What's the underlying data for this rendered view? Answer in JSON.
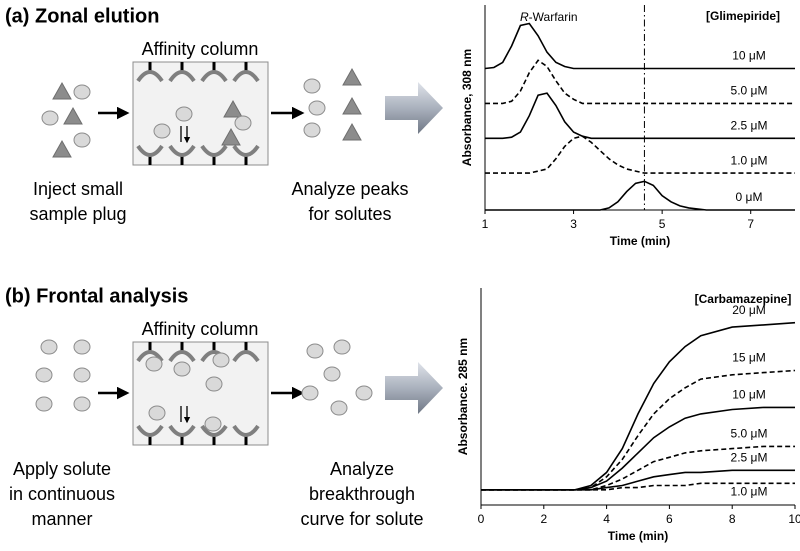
{
  "diagrams": [
    {
      "title": "(a) Zonal elution",
      "column_label": "Affinity column",
      "input_caption": [
        "Inject small",
        "sample plug"
      ],
      "output_caption": [
        "Analyze peaks",
        "for solutes"
      ]
    },
    {
      "title": "(b) Frontal analysis",
      "column_label": "Affinity column",
      "input_caption": [
        "Apply solute",
        "in continuous",
        "manner"
      ],
      "output_caption": [
        "Analyze",
        "breakthrough",
        "curve for solute"
      ]
    }
  ],
  "chart_data": [
    {
      "type": "line",
      "x_label": "Time (min)",
      "y_label": "Absorbance, 308 nm",
      "legend_title": "[Glimepiride]",
      "annotation": "R-Warfarin",
      "xlim": [
        1,
        8
      ],
      "xticks": [
        1,
        3,
        5,
        7
      ],
      "ylim": [
        0,
        10
      ],
      "vline": 4.6,
      "x": [
        1,
        1.2,
        1.4,
        1.6,
        1.8,
        2,
        2.2,
        2.4,
        2.6,
        2.8,
        3,
        3.2,
        3.4,
        3.6,
        3.8,
        4,
        4.2,
        4.4,
        4.6,
        4.8,
        5,
        5.2,
        5.4,
        5.6,
        6,
        7,
        8
      ],
      "series": [
        {
          "name": "10 μM",
          "color": "#000000",
          "style": "solid",
          "values": [
            6.9,
            6.95,
            7.2,
            8,
            9,
            9.1,
            8.5,
            7.7,
            7.2,
            7,
            6.9,
            6.9,
            6.9,
            6.9,
            6.9,
            6.9,
            6.9,
            6.9,
            6.9,
            6.9,
            6.9,
            6.9,
            6.9,
            6.9,
            6.9,
            6.9,
            6.9
          ]
        },
        {
          "name": "5.0 μM",
          "color": "#000000",
          "style": "dashed",
          "values": [
            5.2,
            5.2,
            5.2,
            5.3,
            5.8,
            6.7,
            7.3,
            7,
            6.3,
            5.7,
            5.4,
            5.2,
            5.2,
            5.2,
            5.2,
            5.2,
            5.2,
            5.2,
            5.2,
            5.2,
            5.2,
            5.2,
            5.2,
            5.2,
            5.2,
            5.2,
            5.2
          ]
        },
        {
          "name": "2.5 μM",
          "color": "#000000",
          "style": "solid",
          "values": [
            3.5,
            3.5,
            3.5,
            3.55,
            3.8,
            4.6,
            5.6,
            5.7,
            5.1,
            4.3,
            3.8,
            3.6,
            3.5,
            3.5,
            3.5,
            3.5,
            3.5,
            3.5,
            3.5,
            3.5,
            3.5,
            3.5,
            3.5,
            3.5,
            3.5,
            3.5,
            3.5
          ]
        },
        {
          "name": "1.0 μM",
          "color": "#000000",
          "style": "dashed",
          "values": [
            1.8,
            1.8,
            1.8,
            1.8,
            1.8,
            1.8,
            1.9,
            2,
            2.5,
            3.1,
            3.5,
            3.6,
            3.3,
            2.9,
            2.5,
            2.2,
            2,
            1.9,
            1.8,
            1.8,
            1.8,
            1.8,
            1.8,
            1.8,
            1.8,
            1.8,
            1.8
          ]
        },
        {
          "name": "0 μM",
          "color": "#000000",
          "style": "solid",
          "values": [
            0,
            0,
            0,
            0,
            0,
            0,
            0,
            0,
            0,
            0,
            0,
            0,
            0,
            0,
            0.1,
            0.4,
            0.9,
            1.3,
            1.4,
            1.2,
            0.7,
            0.4,
            0.2,
            0.1,
            0,
            0,
            0
          ]
        }
      ]
    },
    {
      "type": "line",
      "x_label": "Time (min)",
      "y_label": "Absorbance. 285 nm",
      "legend_title": "[Carbamazepine]",
      "xlim": [
        0,
        10
      ],
      "xticks": [
        0,
        2,
        4,
        6,
        8,
        10
      ],
      "ylim": [
        0,
        10
      ],
      "x": [
        0,
        1,
        2,
        3,
        3.5,
        4,
        4.5,
        5,
        5.5,
        6,
        6.5,
        7,
        8,
        9,
        10
      ],
      "series": [
        {
          "name": "20 μM",
          "color": "#000000",
          "style": "solid",
          "values": [
            0.7,
            0.7,
            0.7,
            0.7,
            0.9,
            1.5,
            2.6,
            4.2,
            5.6,
            6.6,
            7.3,
            7.8,
            8.2,
            8.3,
            8.4
          ]
        },
        {
          "name": "15 μM",
          "color": "#000000",
          "style": "dashed",
          "values": [
            0.7,
            0.7,
            0.7,
            0.7,
            0.8,
            1.3,
            2.1,
            3.2,
            4.2,
            4.9,
            5.4,
            5.8,
            6,
            6.1,
            6.2
          ]
        },
        {
          "name": "10 μM",
          "color": "#000000",
          "style": "solid",
          "values": [
            0.7,
            0.7,
            0.7,
            0.7,
            0.8,
            1.1,
            1.7,
            2.4,
            3.1,
            3.6,
            4,
            4.2,
            4.4,
            4.5,
            4.5
          ]
        },
        {
          "name": "5.0 μM",
          "color": "#000000",
          "style": "dashed",
          "values": [
            0.7,
            0.7,
            0.7,
            0.7,
            0.7,
            0.9,
            1.2,
            1.6,
            2,
            2.2,
            2.4,
            2.5,
            2.6,
            2.7,
            2.7
          ]
        },
        {
          "name": "2.5 μM",
          "color": "#000000",
          "style": "solid",
          "values": [
            0.7,
            0.7,
            0.7,
            0.7,
            0.7,
            0.8,
            0.9,
            1.1,
            1.3,
            1.4,
            1.5,
            1.5,
            1.6,
            1.6,
            1.6
          ]
        },
        {
          "name": "1.0 μM",
          "color": "#000000",
          "style": "dashed",
          "values": [
            0.7,
            0.7,
            0.7,
            0.7,
            0.7,
            0.7,
            0.8,
            0.8,
            0.9,
            0.9,
            0.9,
            1,
            1,
            1,
            1
          ]
        }
      ]
    }
  ]
}
